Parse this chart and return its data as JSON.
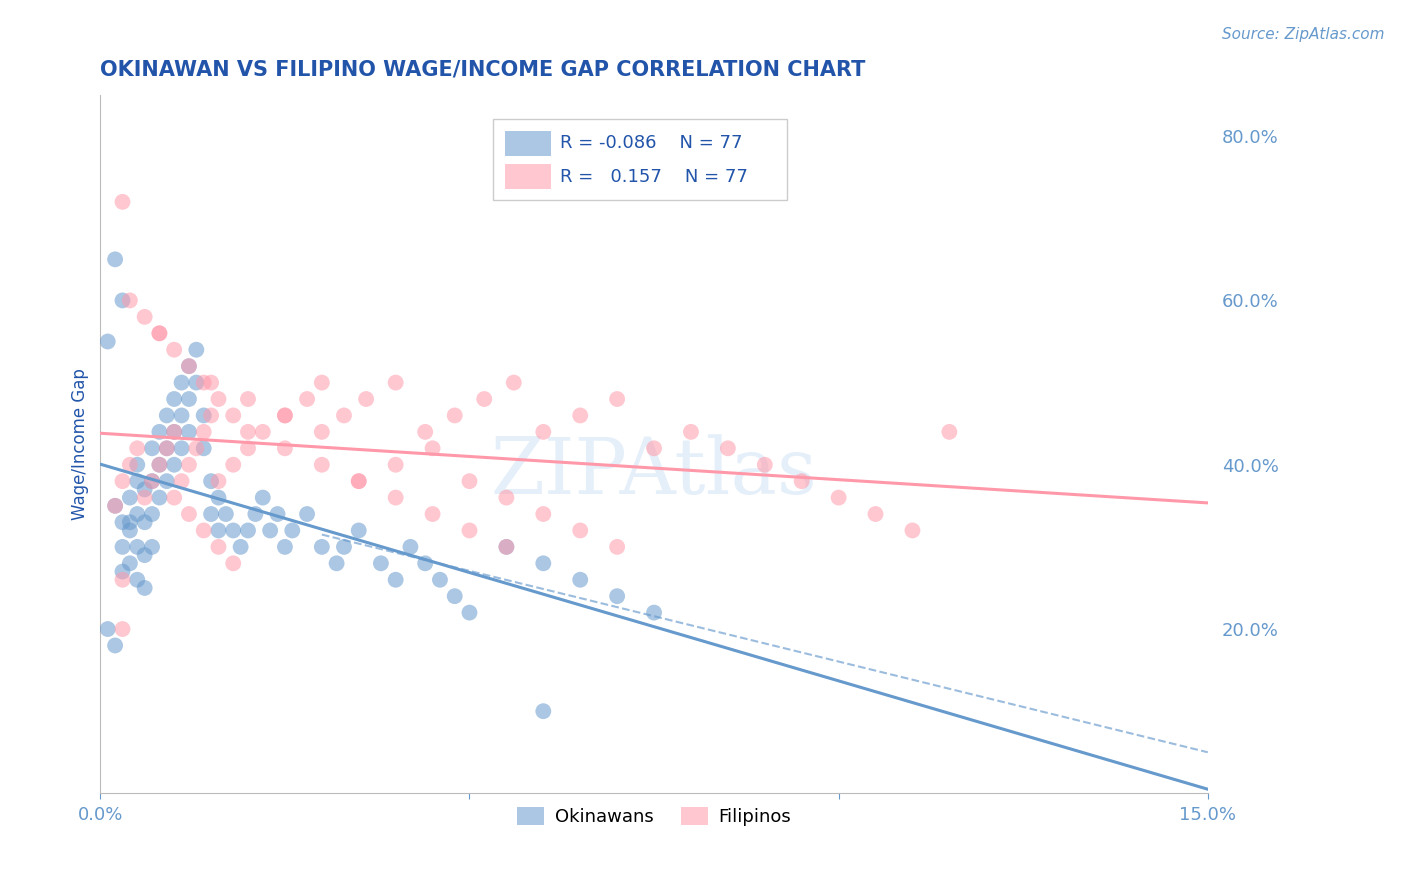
{
  "title": "OKINAWAN VS FILIPINO WAGE/INCOME GAP CORRELATION CHART",
  "source": "Source: ZipAtlas.com",
  "ylabel": "Wage/Income Gap",
  "xlim": [
    0.0,
    0.15
  ],
  "ylim": [
    0.0,
    0.85
  ],
  "yticks": [
    0.2,
    0.4,
    0.6,
    0.8
  ],
  "ytick_labels": [
    "20.0%",
    "40.0%",
    "60.0%",
    "80.0%"
  ],
  "xticks": [
    0.0,
    0.05,
    0.1,
    0.15
  ],
  "xtick_labels": [
    "0.0%",
    "",
    "",
    "15.0%"
  ],
  "okinawan_color": "#6699cc",
  "filipino_color": "#ff99aa",
  "title_color": "#2255aa",
  "axis_color": "#6699cc",
  "grid_color": "#cccccc",
  "watermark": "ZIPAtlas",
  "watermark_color": "#aaccee",
  "R_okinawan": -0.086,
  "R_filipino": 0.157,
  "N_okinawan": 77,
  "N_filipino": 77,
  "background_color": "#ffffff",
  "okinawan_x": [
    0.002,
    0.003,
    0.003,
    0.004,
    0.004,
    0.004,
    0.005,
    0.005,
    0.005,
    0.005,
    0.005,
    0.006,
    0.006,
    0.006,
    0.006,
    0.007,
    0.007,
    0.007,
    0.007,
    0.008,
    0.008,
    0.008,
    0.009,
    0.009,
    0.009,
    0.01,
    0.01,
    0.01,
    0.011,
    0.011,
    0.011,
    0.012,
    0.012,
    0.012,
    0.013,
    0.013,
    0.014,
    0.014,
    0.015,
    0.015,
    0.016,
    0.016,
    0.017,
    0.018,
    0.019,
    0.02,
    0.021,
    0.022,
    0.023,
    0.024,
    0.025,
    0.026,
    0.028,
    0.03,
    0.032,
    0.033,
    0.035,
    0.038,
    0.04,
    0.042,
    0.044,
    0.046,
    0.048,
    0.05,
    0.055,
    0.06,
    0.065,
    0.07,
    0.075,
    0.003,
    0.002,
    0.001,
    0.001,
    0.002,
    0.003,
    0.004,
    0.06
  ],
  "okinawan_y": [
    0.35,
    0.33,
    0.3,
    0.36,
    0.32,
    0.28,
    0.38,
    0.34,
    0.3,
    0.26,
    0.4,
    0.37,
    0.33,
    0.29,
    0.25,
    0.42,
    0.38,
    0.34,
    0.3,
    0.44,
    0.4,
    0.36,
    0.46,
    0.42,
    0.38,
    0.48,
    0.44,
    0.4,
    0.5,
    0.46,
    0.42,
    0.52,
    0.48,
    0.44,
    0.54,
    0.5,
    0.46,
    0.42,
    0.38,
    0.34,
    0.36,
    0.32,
    0.34,
    0.32,
    0.3,
    0.32,
    0.34,
    0.36,
    0.32,
    0.34,
    0.3,
    0.32,
    0.34,
    0.3,
    0.28,
    0.3,
    0.32,
    0.28,
    0.26,
    0.3,
    0.28,
    0.26,
    0.24,
    0.22,
    0.3,
    0.28,
    0.26,
    0.24,
    0.22,
    0.6,
    0.65,
    0.55,
    0.2,
    0.18,
    0.27,
    0.33,
    0.1
  ],
  "filipino_x": [
    0.002,
    0.003,
    0.004,
    0.005,
    0.006,
    0.007,
    0.008,
    0.009,
    0.01,
    0.011,
    0.012,
    0.013,
    0.014,
    0.015,
    0.016,
    0.018,
    0.02,
    0.022,
    0.025,
    0.028,
    0.03,
    0.033,
    0.036,
    0.04,
    0.044,
    0.048,
    0.052,
    0.056,
    0.06,
    0.065,
    0.07,
    0.075,
    0.08,
    0.085,
    0.09,
    0.095,
    0.1,
    0.105,
    0.11,
    0.115,
    0.035,
    0.04,
    0.045,
    0.05,
    0.055,
    0.06,
    0.065,
    0.07,
    0.015,
    0.02,
    0.025,
    0.03,
    0.008,
    0.01,
    0.012,
    0.014,
    0.016,
    0.018,
    0.02,
    0.025,
    0.03,
    0.035,
    0.04,
    0.045,
    0.05,
    0.055,
    0.004,
    0.006,
    0.008,
    0.01,
    0.012,
    0.014,
    0.016,
    0.018,
    0.003,
    0.003,
    0.003
  ],
  "filipino_y": [
    0.35,
    0.38,
    0.4,
    0.42,
    0.36,
    0.38,
    0.4,
    0.42,
    0.44,
    0.38,
    0.4,
    0.42,
    0.44,
    0.46,
    0.38,
    0.4,
    0.42,
    0.44,
    0.46,
    0.48,
    0.5,
    0.46,
    0.48,
    0.5,
    0.44,
    0.46,
    0.48,
    0.5,
    0.44,
    0.46,
    0.48,
    0.42,
    0.44,
    0.42,
    0.4,
    0.38,
    0.36,
    0.34,
    0.32,
    0.44,
    0.38,
    0.4,
    0.42,
    0.38,
    0.36,
    0.34,
    0.32,
    0.3,
    0.5,
    0.48,
    0.46,
    0.44,
    0.56,
    0.54,
    0.52,
    0.5,
    0.48,
    0.46,
    0.44,
    0.42,
    0.4,
    0.38,
    0.36,
    0.34,
    0.32,
    0.3,
    0.6,
    0.58,
    0.56,
    0.36,
    0.34,
    0.32,
    0.3,
    0.28,
    0.72,
    0.26,
    0.2
  ]
}
